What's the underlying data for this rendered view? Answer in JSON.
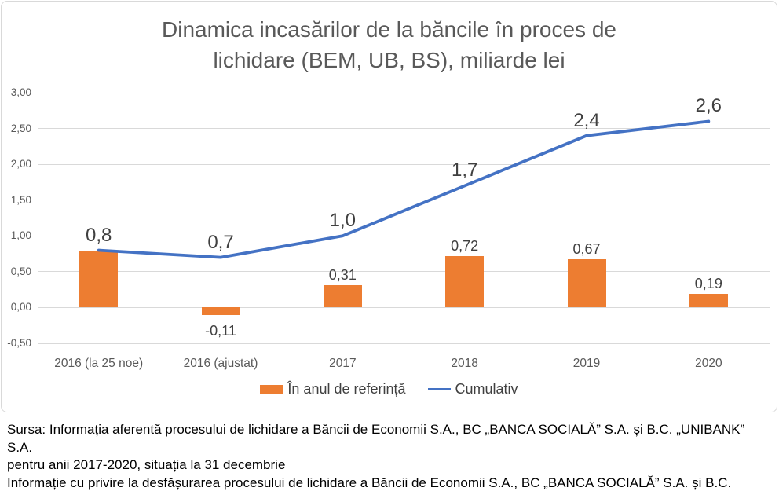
{
  "title_lines": [
    "Dinamica incasărilor de la băncile în proces de",
    "lichidare (BEM, UB, BS), miliarde lei"
  ],
  "colors": {
    "bar": "#ED7D31",
    "line": "#4472C4",
    "gridline": "#D9D9D9",
    "frame_border": "#D9D9D9",
    "title_text": "#595959",
    "axis_text": "#595959",
    "data_label_text": "#404040",
    "source_text": "#000000"
  },
  "chart_data": {
    "type": "combo-bar-line",
    "title": "Dinamica incasărilor de la băncile în proces de lichidare (BEM, UB, BS), miliarde lei",
    "categories": [
      "2016 (la 25 noe)",
      "2016 (ajustat)",
      "2017",
      "2018",
      "2019",
      "2020"
    ],
    "series": [
      {
        "name": "În anul de referință",
        "type": "bar",
        "color": "#ED7D31",
        "values": [
          0.8,
          -0.11,
          0.31,
          0.72,
          0.67,
          0.19
        ],
        "labels": [
          "",
          "-0,11",
          "0,31",
          "0,72",
          "0,67",
          "0,19"
        ]
      },
      {
        "name": "Cumulativ",
        "type": "line",
        "color": "#4472C4",
        "values": [
          0.8,
          0.7,
          1.0,
          1.7,
          2.4,
          2.6
        ],
        "labels": [
          "0,8",
          "0,7",
          "1,0",
          "1,7",
          "2,4",
          "2,6"
        ]
      }
    ],
    "yticks": [
      {
        "label": "3,00",
        "value": 3.0
      },
      {
        "label": "2,50",
        "value": 2.5
      },
      {
        "label": "2,00",
        "value": 2.0
      },
      {
        "label": "1,50",
        "value": 1.5
      },
      {
        "label": "1,00",
        "value": 1.0
      },
      {
        "label": "0,50",
        "value": 0.5
      },
      {
        "label": "0,00",
        "value": 0.0
      },
      {
        "label": "-0,50",
        "value": -0.5
      }
    ],
    "ylim": [
      -0.5,
      3.0
    ],
    "grid": true,
    "legend_position": "bottom"
  },
  "legend": {
    "bar_label": "În anul de referință",
    "line_label": "Cumulativ"
  },
  "source": {
    "lines": [
      "Sursa: Informația aferentă procesului de lichidare a Băncii de Economii S.A., BC „BANCA SOCIALĂ” S.A. și B.C. „UNIBANK” S.A.",
      "pentru anii 2017-2020, situația la 31 decembrie",
      "Informație cu privire la desfășurarea procesului de lichidare a Băncii de Economii S.A., BC „BANCA SOCIALĂ” S.A. și B.C."
    ]
  }
}
